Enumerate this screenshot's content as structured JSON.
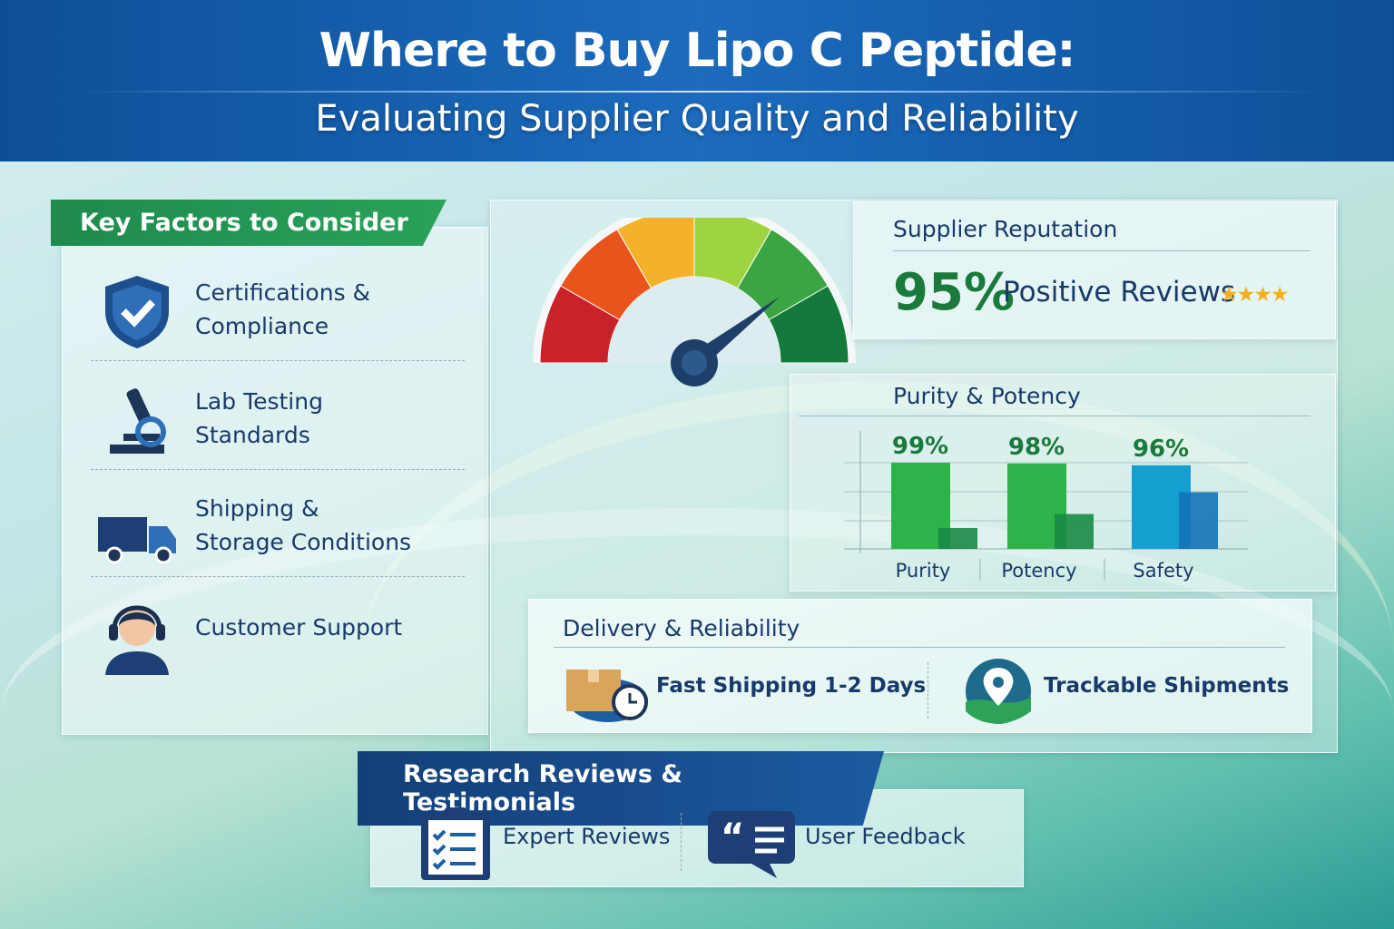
{
  "header": {
    "title": "Where to Buy Lipo C Peptide:",
    "subtitle": "Evaluating Supplier Quality and Reliability"
  },
  "key_factors": {
    "title": "Key Factors to Consider",
    "items": [
      {
        "icon": "shield-check-icon",
        "line1": "Certifications &",
        "line2": "Compliance"
      },
      {
        "icon": "microscope-icon",
        "line1": "Lab Testing",
        "line2": "Standards"
      },
      {
        "icon": "truck-icon",
        "line1": "Shipping &",
        "line2": "Storage Conditions"
      },
      {
        "icon": "headset-agent-icon",
        "line1": "Customer Support",
        "line2": ""
      }
    ]
  },
  "gauge": {
    "level": 0.79,
    "colors": [
      "#c8232a",
      "#e8541c",
      "#f4b22b",
      "#9ed440",
      "#3aa541",
      "#137a3c"
    ]
  },
  "reputation": {
    "title": "Supplier Reputation",
    "percent": "95%",
    "label": "Positive Reviews",
    "stars": 4,
    "star_color": "#f2b01e"
  },
  "purity": {
    "title": "Purity & Potency"
  },
  "chart_data": {
    "type": "bar",
    "categories": [
      "Purity",
      "Potency",
      "Safety"
    ],
    "series": [
      {
        "values": [
          99,
          98,
          96
        ],
        "labels": [
          "99%",
          "98%",
          "96%"
        ]
      },
      {
        "values": [
          24,
          40,
          65
        ]
      }
    ],
    "ylim": [
      0,
      100
    ],
    "grid": true,
    "colors": [
      "#2db34a",
      "#2db34a",
      "#159fd0"
    ]
  },
  "delivery": {
    "title": "Delivery & Reliability",
    "items": [
      {
        "icon": "box-clock-icon",
        "label": "Fast Shipping 1-2 Days"
      },
      {
        "icon": "map-pin-icon",
        "label": "Trackable Shipments"
      }
    ]
  },
  "reviews": {
    "title": "Research Reviews & Testimonials",
    "items": [
      {
        "icon": "clipboard-checklist-icon",
        "label": "Expert Reviews"
      },
      {
        "icon": "quote-bubble-icon",
        "label": "User Feedback"
      }
    ]
  }
}
